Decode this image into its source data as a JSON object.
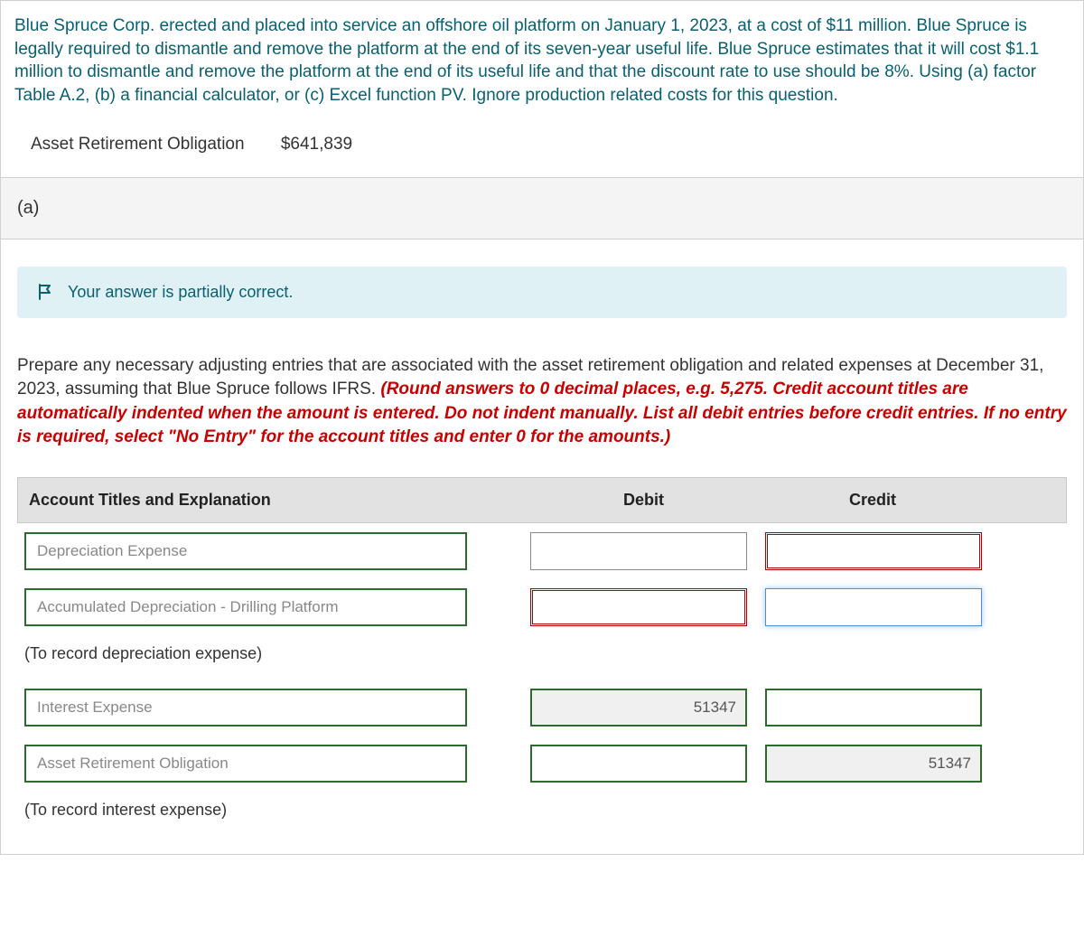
{
  "problem": {
    "text": "Blue Spruce Corp. erected and placed into service an offshore oil platform on January 1, 2023, at a cost of $11 million. Blue Spruce is legally required to dismantle and remove the platform at the end of its seven-year useful life. Blue Spruce estimates that it will cost $1.1 million to dismantle and remove the platform at the end of its useful life and that the discount rate to use should be 8%. Using (a) factor Table A.2, (b) a financial calculator, or (c) Excel function PV. Ignore production related costs for this question.",
    "aro_label": "Asset Retirement Obligation",
    "aro_value": "$641,839"
  },
  "part": {
    "label": "(a)"
  },
  "feedback": {
    "message": "Your answer is partially correct."
  },
  "instruction": {
    "black": "Prepare any necessary adjusting entries that are associated with the asset retirement obligation and related expenses at December 31, 2023, assuming that Blue Spruce follows IFRS. ",
    "red": "(Round answers to 0 decimal places, e.g. 5,275. Credit account titles are automatically indented when the amount is entered. Do not indent manually. List all debit entries before credit entries. If no entry is required, select \"No Entry\" for the account titles and enter 0 for the amounts.)"
  },
  "table": {
    "headers": {
      "account": "Account Titles and Explanation",
      "debit": "Debit",
      "credit": "Credit"
    },
    "rows": [
      {
        "account": "Depreciation Expense",
        "account_border": "green",
        "debit": "",
        "debit_border": "plain",
        "credit": "",
        "credit_border": "red",
        "indent": false,
        "filled": false
      },
      {
        "account": "Accumulated Depreciation - Drilling Platform",
        "account_border": "green",
        "debit": "",
        "debit_border": "red",
        "credit": "",
        "credit_border": "blue",
        "indent": false,
        "filled": false
      },
      {
        "note": "(To record depreciation expense)"
      },
      {
        "account": "Interest Expense",
        "account_border": "green",
        "debit": "51347",
        "debit_border": "green",
        "credit": "",
        "credit_border": "green",
        "indent": false,
        "filled": true
      },
      {
        "account": "Asset Retirement Obligation",
        "account_border": "green",
        "debit": "",
        "debit_border": "green",
        "credit": "51347",
        "credit_border": "green",
        "indent": true,
        "filled": true
      },
      {
        "note": "(To record interest expense)"
      }
    ]
  },
  "colors": {
    "teal_text": "#0a6070",
    "red_text": "#c90000",
    "banner_bg": "#dff1f4",
    "header_bg": "#e2e2e2",
    "green_border": "#2d6a2d",
    "red_border": "#b00000",
    "blue_border": "#4a90d9"
  }
}
